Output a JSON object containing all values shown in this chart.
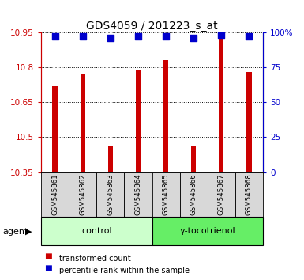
{
  "title": "GDS4059 / 201223_s_at",
  "samples": [
    "GSM545861",
    "GSM545862",
    "GSM545863",
    "GSM545864",
    "GSM545865",
    "GSM545866",
    "GSM545867",
    "GSM545868"
  ],
  "red_values": [
    10.72,
    10.77,
    10.46,
    10.79,
    10.83,
    10.46,
    10.94,
    10.78
  ],
  "blue_values": [
    97,
    97,
    96,
    97,
    97,
    96,
    98,
    97
  ],
  "y_min": 10.35,
  "y_max": 10.95,
  "y_ticks": [
    10.35,
    10.5,
    10.65,
    10.8,
    10.95
  ],
  "y_tick_labels": [
    "10.35",
    "10.5",
    "10.65",
    "10.8",
    "10.95"
  ],
  "right_y_ticks": [
    0,
    25,
    50,
    75,
    100
  ],
  "right_y_labels": [
    "0",
    "25",
    "50",
    "75",
    "100%"
  ],
  "groups": [
    {
      "label": "control",
      "start": 0,
      "end": 4,
      "color": "#ccffcc"
    },
    {
      "label": "γ-tocotrienol",
      "start": 4,
      "end": 8,
      "color": "#66ee66"
    }
  ],
  "agent_label": "agent",
  "bar_color": "#cc0000",
  "dot_color": "#0000cc",
  "bar_bottom": 10.35,
  "legend_items": [
    {
      "color": "#cc0000",
      "label": "transformed count"
    },
    {
      "color": "#0000cc",
      "label": "percentile rank within the sample"
    }
  ],
  "title_color": "black",
  "left_axis_color": "#cc0000",
  "right_axis_color": "#0000cc",
  "bar_width": 0.18,
  "dot_size": 28,
  "sample_box_color": "#d8d8d8"
}
